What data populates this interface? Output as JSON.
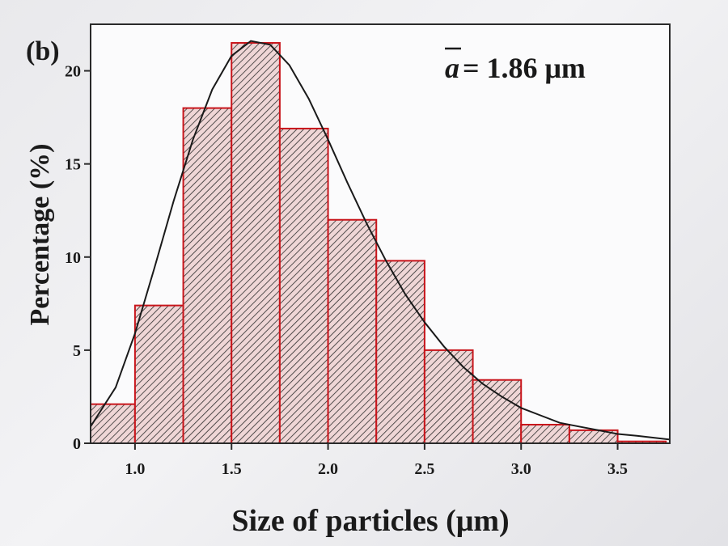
{
  "chart_data": {
    "type": "bar",
    "subtype": "histogram-with-fit-curve",
    "panel_label": "(b)",
    "xlabel": "Size of particles (μm)",
    "ylabel": "Percentage (%)",
    "xlim": [
      0.77,
      3.77
    ],
    "ylim": [
      0,
      22.5
    ],
    "x_ticks": [
      1.0,
      1.5,
      2.0,
      2.5,
      3.0,
      3.5
    ],
    "x_tick_labels": [
      "1.0",
      "1.5",
      "2.0",
      "2.5",
      "3.0",
      "3.5"
    ],
    "y_ticks": [
      0,
      5,
      10,
      15,
      20
    ],
    "y_tick_labels": [
      "0",
      "5",
      "10",
      "15",
      "20"
    ],
    "bin_width": 0.25,
    "bins": [
      {
        "x0": 0.75,
        "x1": 1.0,
        "value": 2.1
      },
      {
        "x0": 1.0,
        "x1": 1.25,
        "value": 7.4
      },
      {
        "x0": 1.25,
        "x1": 1.5,
        "value": 18.0
      },
      {
        "x0": 1.5,
        "x1": 1.75,
        "value": 21.5
      },
      {
        "x0": 1.75,
        "x1": 2.0,
        "value": 16.9
      },
      {
        "x0": 2.0,
        "x1": 2.25,
        "value": 12.0
      },
      {
        "x0": 2.25,
        "x1": 2.5,
        "value": 9.8
      },
      {
        "x0": 2.5,
        "x1": 2.75,
        "value": 5.0
      },
      {
        "x0": 2.75,
        "x1": 3.0,
        "value": 3.4
      },
      {
        "x0": 3.0,
        "x1": 3.25,
        "value": 1.0
      },
      {
        "x0": 3.25,
        "x1": 3.5,
        "value": 0.7
      },
      {
        "x0": 3.5,
        "x1": 3.75,
        "value": 0.1
      }
    ],
    "fit_curve": {
      "type": "lognormal",
      "x": [
        0.77,
        0.9,
        1.0,
        1.1,
        1.2,
        1.3,
        1.4,
        1.5,
        1.6,
        1.7,
        1.8,
        1.9,
        2.0,
        2.1,
        2.2,
        2.3,
        2.4,
        2.5,
        2.6,
        2.7,
        2.8,
        2.9,
        3.0,
        3.1,
        3.2,
        3.3,
        3.4,
        3.5,
        3.6,
        3.77
      ],
      "y": [
        0.9,
        3.0,
        5.9,
        9.4,
        13.0,
        16.3,
        19.0,
        20.8,
        21.6,
        21.4,
        20.3,
        18.5,
        16.3,
        14.0,
        11.8,
        9.8,
        8.0,
        6.5,
        5.2,
        4.1,
        3.2,
        2.5,
        1.9,
        1.5,
        1.1,
        0.9,
        0.7,
        0.5,
        0.4,
        0.2
      ]
    },
    "annotation": {
      "symbol": "a",
      "text": " = 1.86 μm"
    },
    "colors": {
      "bar_edge": "#c8151b",
      "hatch": "#2a2a2a",
      "bar_fill": "#efd6d6",
      "fit_curve": "#1a1a1a",
      "axis": "#2a2a2a"
    }
  }
}
